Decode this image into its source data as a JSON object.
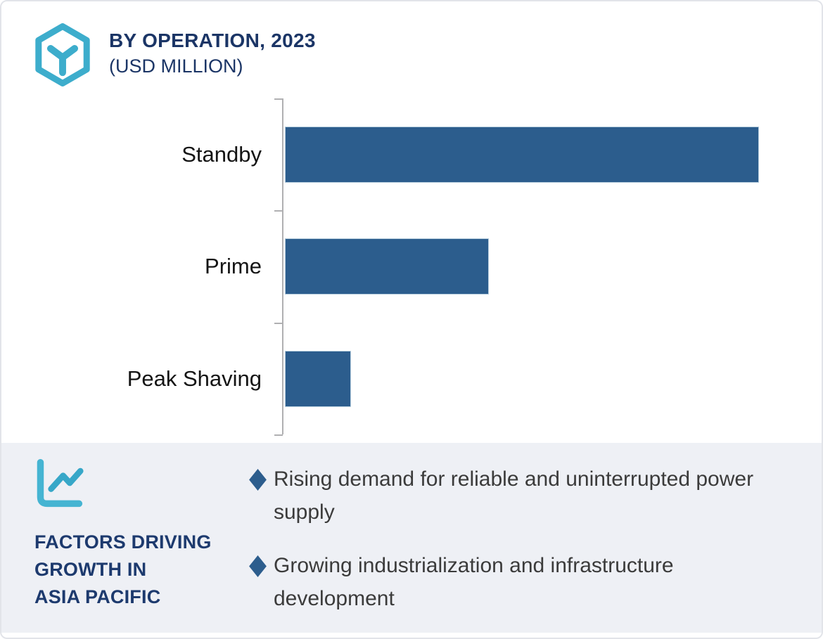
{
  "colors": {
    "navy": "#1b3566",
    "bar_blue": "#2c5d8d",
    "teal": "#3dadcc",
    "panel_bg": "#eef0f5",
    "axis_gray": "#b0b0b2",
    "bullet_text": "#3b3b3b"
  },
  "header": {
    "logo_icon": "hexagon-y-logo-icon",
    "title_line1": "BY OPERATION, 2023",
    "title_line2": "(USD MILLION)"
  },
  "chart_data": {
    "type": "bar",
    "orientation": "horizontal",
    "title": "BY OPERATION, 2023 (USD MILLION)",
    "categories": [
      "Standby",
      "Prime",
      "Peak Shaving"
    ],
    "values": [
      100,
      43,
      14
    ],
    "values_unit": "relative (no numeric axis labels shown)",
    "xlabel": "",
    "ylabel": "",
    "grid": false,
    "value_labels_shown": false,
    "axis_tick_labels_shown": false,
    "bar_color": "#2c5d8d",
    "legend": null
  },
  "factors": {
    "icon": "line-chart-icon",
    "heading": "FACTORS DRIVING\nGROWTH IN\nASIA PACIFIC",
    "bullet_marker": "diamond",
    "items": [
      "Rising demand for reliable and uninterrupted power supply",
      "Growing industrialization and infrastructure development"
    ]
  }
}
